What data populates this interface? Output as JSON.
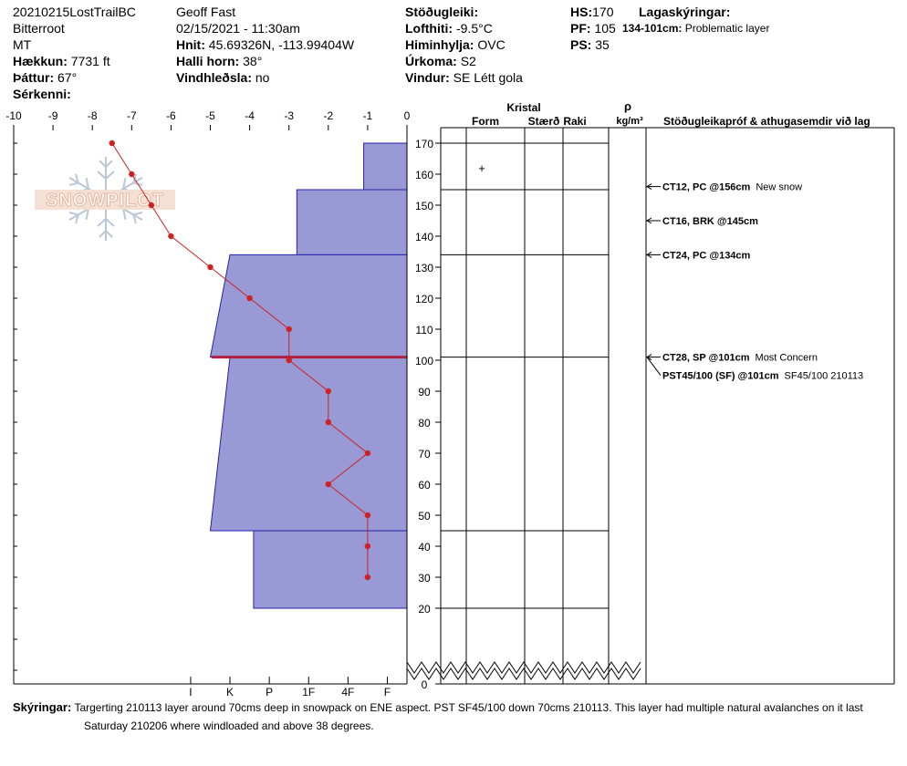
{
  "header": {
    "pit_name": "20210215LostTrailBC",
    "range": "Bitterroot",
    "state": "MT",
    "elevation_label": "Hækkun:",
    "elevation": "7731 ft",
    "aspect_label": "Þáttur:",
    "aspect": "67°",
    "specifics_label": "Sérkenni:",
    "observer": "Geoff Fast",
    "datetime": "02/15/2021 - 11:30am",
    "coords_label": "Hnit:",
    "coords": "45.69326N, -113.99404W",
    "slope_label": "Halli horn:",
    "slope": "38°",
    "wind_loading_label": "Vindhleðsla:",
    "wind_loading": "no",
    "stability_label": "Stöðugleiki:",
    "air_temp_label": "Lofthiti:",
    "air_temp": "-9.5°C",
    "sky_label": "Himinhylja:",
    "sky": "OVC",
    "precip_label": "Úrkoma:",
    "precip": "S2",
    "wind_label": "Vindur:",
    "wind": "SE  Létt gola",
    "hs_label": "HS:",
    "hs": "170",
    "pf_label": "PF:",
    "pf": "105",
    "ps_label": "PS:",
    "ps": "35",
    "layer_notes_label": "Lagaskýringar:",
    "layer_note_depth": "134-101cm:",
    "layer_note_text": "Problematic layer"
  },
  "logo_text": "SNOWPILOT",
  "columns": {
    "crystal": "Kristal",
    "form": "Form",
    "size": "Stærð",
    "moisture": "Raki",
    "density_symbol": "ρ",
    "density_unit": "kg/m³",
    "tests": "Stöðugleikapróf & athugasemdir við lag"
  },
  "comments": {
    "label": "Skýringar:",
    "line1": "Targerting 210113 layer around 70cms deep in snowpack on ENE aspect. PST SF45/100 down 70cms 210113. This layer had multiple natural avalanches on it last",
    "line2": "Saturday 210206 where windloaded and above 38 degrees."
  },
  "chart_data": {
    "type": "snow-profile",
    "temperature_axis": {
      "ticks": [
        -10,
        -9,
        -8,
        -7,
        -6,
        -5,
        -4,
        -3,
        -2,
        -1,
        0
      ],
      "tick_labels": [
        "-10",
        "-9",
        "-8",
        "-7",
        "-6",
        "-5",
        "-4",
        "-3",
        "-2",
        "-1",
        "0"
      ],
      "range": [
        -10,
        0
      ]
    },
    "hardness_axis": {
      "labels": [
        "I",
        "K",
        "P",
        "1F",
        "4F",
        "F"
      ],
      "hardness_values": [
        5.5,
        4.5,
        3.5,
        2.5,
        1.5,
        0.5
      ]
    },
    "height_axis": {
      "ticks": [
        0,
        20,
        30,
        40,
        50,
        60,
        70,
        80,
        90,
        100,
        110,
        120,
        130,
        140,
        150,
        160,
        170
      ],
      "tick_labels": [
        "0",
        "20",
        "30",
        "40",
        "50",
        "60",
        "70",
        "80",
        "90",
        "100",
        "110",
        "120",
        "130",
        "140",
        "150",
        "160",
        "170"
      ],
      "range": [
        0,
        170
      ]
    },
    "temperature_profile": [
      {
        "height": 170,
        "temp": -7.5
      },
      {
        "height": 160,
        "temp": -7.0
      },
      {
        "height": 150,
        "temp": -6.5
      },
      {
        "height": 140,
        "temp": -6.0
      },
      {
        "height": 130,
        "temp": -5.0
      },
      {
        "height": 120,
        "temp": -4.0
      },
      {
        "height": 110,
        "temp": -3.0
      },
      {
        "height": 100,
        "temp": -3.0
      },
      {
        "height": 90,
        "temp": -2.0
      },
      {
        "height": 80,
        "temp": -2.0
      },
      {
        "height": 70,
        "temp": -1.0
      },
      {
        "height": 60,
        "temp": -2.0
      },
      {
        "height": 50,
        "temp": -1.0
      },
      {
        "height": 40,
        "temp": -1.0
      },
      {
        "height": 30,
        "temp": -1.0
      }
    ],
    "layers": [
      {
        "top": 170,
        "bottom": 155,
        "hardness_top": 1.1,
        "hardness_bottom": 1.1
      },
      {
        "top": 155,
        "bottom": 134,
        "hardness_top": 2.8,
        "hardness_bottom": 2.8
      },
      {
        "top": 134,
        "bottom": 101,
        "hardness_top": 4.5,
        "hardness_bottom": 5.0
      },
      {
        "top": 101,
        "bottom": 45,
        "hardness_top": 4.5,
        "hardness_bottom": 5.0
      },
      {
        "top": 45,
        "bottom": 20,
        "hardness_top": 3.9,
        "hardness_bottom": 3.9
      }
    ],
    "layer_boundaries": [
      170,
      155,
      134,
      101,
      45,
      20
    ],
    "problem_layer_height": 101,
    "crystal_marks": [
      {
        "height": 162,
        "symbol": "+"
      }
    ],
    "stability_tests": [
      {
        "height": 156,
        "result": "CT12, PC @156cm",
        "comment": "New snow"
      },
      {
        "height": 145,
        "result": "CT16, BRK @145cm",
        "comment": ""
      },
      {
        "height": 134,
        "result": "CT24, PC @134cm",
        "comment": ""
      },
      {
        "height": 101,
        "result": "CT28, SP @101cm",
        "comment": "Most Concern"
      },
      {
        "height": 101,
        "result": "PST45/100 (SF) @101cm",
        "comment": "SF45/100 210113"
      }
    ],
    "colors": {
      "hardness_fill": "#9999d6",
      "hardness_stroke": "#2222aa",
      "temp_line": "#cc2222",
      "problem_line": "#b02040"
    }
  }
}
